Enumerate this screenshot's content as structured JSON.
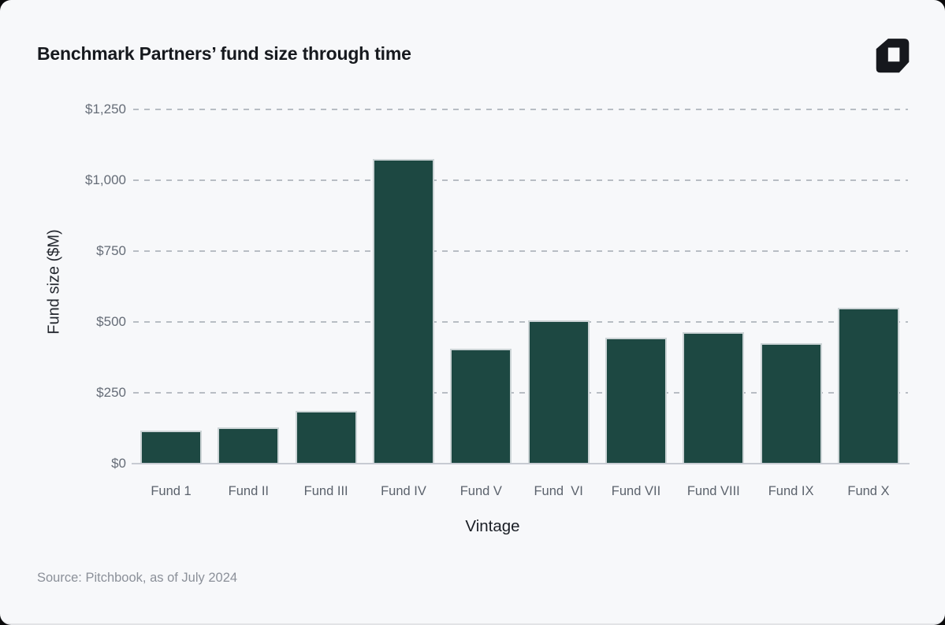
{
  "page": {
    "title": "Benchmark Partners’ fund size through time",
    "source": "Source: Pitchbook, as of July 2024",
    "logo": "generalist-glyph-logo"
  },
  "chart_data": {
    "type": "bar",
    "title": "Benchmark Partners’ fund size through time",
    "xlabel": "Vintage",
    "ylabel": "Fund size ($M)",
    "categories": [
      "Fund 1",
      "Fund II",
      "Fund III",
      "Fund IV",
      "Fund V",
      "Fund  VI",
      "Fund VII",
      "Fund VIII",
      "Fund IX",
      "Fund X"
    ],
    "values": [
      118,
      127,
      185,
      1075,
      405,
      505,
      445,
      465,
      425,
      550
    ],
    "ylim": [
      0,
      1250
    ],
    "ytick_values": [
      0,
      250,
      500,
      750,
      1000,
      1250
    ],
    "yticks": [
      "$0",
      "$250",
      "$500",
      "$750",
      "$1,000",
      "$1,250"
    ],
    "grid": "horizontal-dashed",
    "legend": "none",
    "bar_color": "#1d4842",
    "bar_border_color": "#ccd4d6",
    "background_color": "#f7f8fa",
    "gridline_color": "#b8bdc4"
  }
}
